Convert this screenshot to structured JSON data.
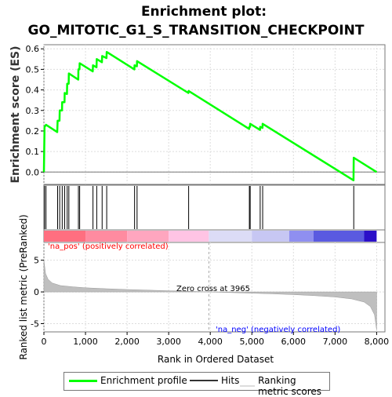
{
  "chart_data": {
    "type": "line",
    "title_line1": "Enrichment plot:",
    "title_line2": "GO_MITOTIC_G1_S_TRANSITION_CHECKPOINT",
    "xlabel": "Rank in Ordered Dataset",
    "ylabel_top": "Enrichment score (ES)",
    "ylabel_bottom": "Ranked list metric (PreRanked)",
    "xlim": [
      0,
      8200
    ],
    "es_ylim": [
      -0.06,
      0.62
    ],
    "metric_ylim": [
      -6.3,
      7.8
    ],
    "x_ticks": [
      0,
      1000,
      2000,
      3000,
      4000,
      5000,
      6000,
      7000,
      8000
    ],
    "x_tick_labels": [
      "0",
      "1,000",
      "2,000",
      "3,000",
      "4,000",
      "5,000",
      "6,000",
      "7,000",
      "8,000"
    ],
    "es_ticks": [
      0.0,
      0.1,
      0.2,
      0.3,
      0.4,
      0.5,
      0.6
    ],
    "es_tick_labels": [
      "0.0",
      "0.1",
      "0.2",
      "0.3",
      "0.4",
      "0.5",
      "0.6"
    ],
    "metric_ticks": [
      -5,
      0,
      5
    ],
    "metric_tick_labels": [
      "-5",
      "0",
      "5"
    ],
    "hits": [
      15,
      50,
      330,
      380,
      440,
      500,
      560,
      600,
      830,
      860,
      1180,
      1270,
      1400,
      1510,
      2180,
      2240,
      3480,
      4940,
      4960,
      5200,
      5260,
      7450
    ],
    "es_profile": [
      {
        "x": 0,
        "y": 0.0
      },
      {
        "x": 15,
        "y": 0.22
      },
      {
        "x": 50,
        "y": 0.23
      },
      {
        "x": 320,
        "y": 0.195
      },
      {
        "x": 330,
        "y": 0.25
      },
      {
        "x": 375,
        "y": 0.25
      },
      {
        "x": 380,
        "y": 0.3
      },
      {
        "x": 435,
        "y": 0.3
      },
      {
        "x": 440,
        "y": 0.34
      },
      {
        "x": 495,
        "y": 0.34
      },
      {
        "x": 500,
        "y": 0.385
      },
      {
        "x": 555,
        "y": 0.38
      },
      {
        "x": 560,
        "y": 0.43
      },
      {
        "x": 595,
        "y": 0.43
      },
      {
        "x": 600,
        "y": 0.48
      },
      {
        "x": 825,
        "y": 0.45
      },
      {
        "x": 830,
        "y": 0.5
      },
      {
        "x": 855,
        "y": 0.5
      },
      {
        "x": 860,
        "y": 0.53
      },
      {
        "x": 1175,
        "y": 0.49
      },
      {
        "x": 1180,
        "y": 0.52
      },
      {
        "x": 1265,
        "y": 0.51
      },
      {
        "x": 1270,
        "y": 0.55
      },
      {
        "x": 1395,
        "y": 0.535
      },
      {
        "x": 1400,
        "y": 0.565
      },
      {
        "x": 1505,
        "y": 0.555
      },
      {
        "x": 1510,
        "y": 0.585
      },
      {
        "x": 2175,
        "y": 0.5
      },
      {
        "x": 2180,
        "y": 0.52
      },
      {
        "x": 2235,
        "y": 0.515
      },
      {
        "x": 2240,
        "y": 0.54
      },
      {
        "x": 3475,
        "y": 0.385
      },
      {
        "x": 3480,
        "y": 0.395
      },
      {
        "x": 4935,
        "y": 0.21
      },
      {
        "x": 4940,
        "y": 0.22
      },
      {
        "x": 4955,
        "y": 0.22
      },
      {
        "x": 4960,
        "y": 0.235
      },
      {
        "x": 5195,
        "y": 0.205
      },
      {
        "x": 5200,
        "y": 0.22
      },
      {
        "x": 5255,
        "y": 0.215
      },
      {
        "x": 5260,
        "y": 0.235
      },
      {
        "x": 7445,
        "y": -0.04
      },
      {
        "x": 7450,
        "y": 0.07
      },
      {
        "x": 8000,
        "y": 0.0
      }
    ],
    "metric_profile": [
      {
        "x": 0,
        "y": 5.0
      },
      {
        "x": 40,
        "y": 2.9
      },
      {
        "x": 100,
        "y": 2.0
      },
      {
        "x": 200,
        "y": 1.4
      },
      {
        "x": 400,
        "y": 1.0
      },
      {
        "x": 700,
        "y": 0.8
      },
      {
        "x": 1000,
        "y": 0.65
      },
      {
        "x": 1500,
        "y": 0.5
      },
      {
        "x": 2000,
        "y": 0.38
      },
      {
        "x": 2500,
        "y": 0.28
      },
      {
        "x": 3000,
        "y": 0.18
      },
      {
        "x": 3500,
        "y": 0.09
      },
      {
        "x": 3965,
        "y": 0.0
      },
      {
        "x": 4500,
        "y": -0.1
      },
      {
        "x": 5000,
        "y": -0.2
      },
      {
        "x": 5500,
        "y": -0.3
      },
      {
        "x": 6000,
        "y": -0.42
      },
      {
        "x": 6500,
        "y": -0.58
      },
      {
        "x": 7000,
        "y": -0.8
      },
      {
        "x": 7400,
        "y": -1.1
      },
      {
        "x": 7700,
        "y": -1.6
      },
      {
        "x": 7850,
        "y": -2.3
      },
      {
        "x": 7950,
        "y": -3.6
      },
      {
        "x": 8000,
        "y": -6.0
      }
    ],
    "gradient_segments": [
      {
        "x0": 0,
        "x1": 1000,
        "color": "#ff6f80"
      },
      {
        "x0": 1000,
        "x1": 2000,
        "color": "#ff8ba0"
      },
      {
        "x0": 2000,
        "x1": 3000,
        "color": "#ffa6bf"
      },
      {
        "x0": 3000,
        "x1": 3965,
        "color": "#ffc4e4"
      },
      {
        "x0": 3965,
        "x1": 5000,
        "color": "#dcdcf6"
      },
      {
        "x0": 5000,
        "x1": 5900,
        "color": "#c7c7f3"
      },
      {
        "x0": 5900,
        "x1": 6480,
        "color": "#8f8ff0"
      },
      {
        "x0": 6480,
        "x1": 7700,
        "color": "#5a5ae0"
      },
      {
        "x0": 7700,
        "x1": 8000,
        "color": "#2b0fc8"
      }
    ],
    "zero_cross_label": "Zero cross at 3965",
    "zero_cross_x": 3965,
    "pos_label": "'na_pos' (positively correlated)",
    "neg_label": "'na_neg' (negatively correlated)",
    "colors": {
      "es_line": "#00ff00",
      "hit": "#000000",
      "metric_fill": "#bfbfbf",
      "pos_text": "#ff0000",
      "neg_text": "#0000ff",
      "grid": "#dddddd",
      "frame": "#777777"
    },
    "legend": [
      {
        "label": "Enrichment profile",
        "color": "#00ff00"
      },
      {
        "label": "Hits",
        "color": "#000000"
      },
      {
        "label": "Ranking metric scores",
        "color": "#dddddd"
      }
    ]
  }
}
